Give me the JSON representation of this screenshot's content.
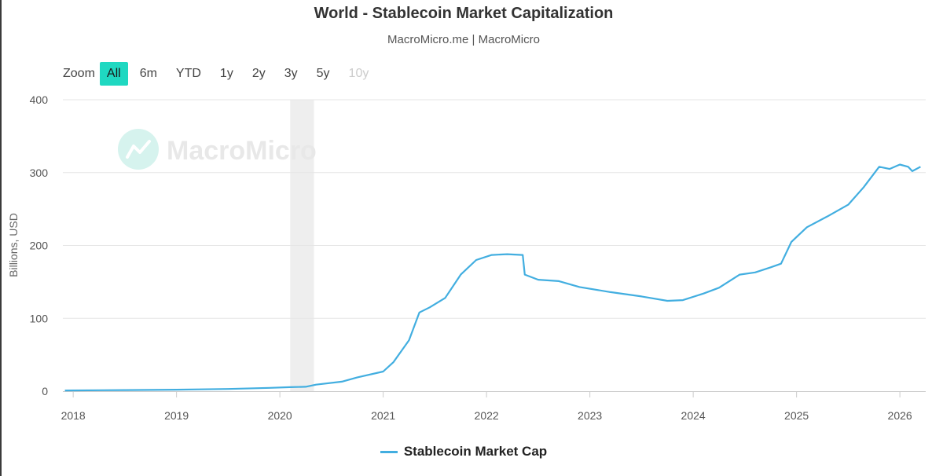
{
  "header": {
    "title": "World - Stablecoin Market Capitalization",
    "subtitle": "MacroMicro.me | MacroMicro"
  },
  "zoom": {
    "label": "Zoom",
    "buttons": [
      {
        "label": "All",
        "state": "active"
      },
      {
        "label": "6m",
        "state": "normal"
      },
      {
        "label": "YTD",
        "state": "normal"
      },
      {
        "label": "1y",
        "state": "normal"
      },
      {
        "label": "2y",
        "state": "normal"
      },
      {
        "label": "3y",
        "state": "normal"
      },
      {
        "label": "5y",
        "state": "normal"
      },
      {
        "label": "10y",
        "state": "disabled"
      }
    ]
  },
  "watermark": {
    "text": "MacroMicro"
  },
  "colors": {
    "series": "#42aee0",
    "active_zoom": "#1fd8c1",
    "shade": "#eeeeee",
    "grid": "#e6e6e6"
  },
  "chart_data": {
    "type": "line",
    "ylabel": "Billions, USD",
    "ylim": [
      0,
      400
    ],
    "yticks": [
      0,
      100,
      200,
      300,
      400
    ],
    "xlim": [
      2017.9,
      2026.25
    ],
    "xticks": [
      2018,
      2019,
      2020,
      2021,
      2022,
      2023,
      2024,
      2025,
      2026
    ],
    "xtick_labels": [
      "2018",
      "2019",
      "2020",
      "2021",
      "2022",
      "2023",
      "2024",
      "2025",
      "2026"
    ],
    "grid": true,
    "legend_position": "bottom-center",
    "shaded_region": {
      "from": 2020.1,
      "to": 2020.33
    },
    "series": [
      {
        "name": "Stablecoin Market Cap",
        "color": "#42aee0",
        "x": [
          2017.92,
          2018.5,
          2019.0,
          2019.5,
          2019.9,
          2020.1,
          2020.25,
          2020.35,
          2020.6,
          2020.75,
          2021.0,
          2021.1,
          2021.25,
          2021.35,
          2021.45,
          2021.6,
          2021.75,
          2021.9,
          2022.05,
          2022.2,
          2022.35,
          2022.37,
          2022.5,
          2022.7,
          2022.9,
          2023.2,
          2023.5,
          2023.75,
          2023.9,
          2024.1,
          2024.25,
          2024.45,
          2024.6,
          2024.75,
          2024.85,
          2024.95,
          2025.1,
          2025.3,
          2025.5,
          2025.65,
          2025.8,
          2025.9,
          2026.0,
          2026.08,
          2026.12,
          2026.2
        ],
        "y": [
          1,
          1.5,
          2,
          3,
          4.5,
          5.5,
          6,
          9,
          13,
          19,
          27,
          40,
          70,
          108,
          115,
          128,
          160,
          180,
          187,
          188,
          187,
          160,
          153,
          151,
          143,
          136,
          130,
          124,
          125,
          134,
          142,
          160,
          163,
          170,
          175,
          205,
          225,
          240,
          256,
          280,
          308,
          305,
          311,
          308,
          302,
          308
        ]
      }
    ]
  }
}
